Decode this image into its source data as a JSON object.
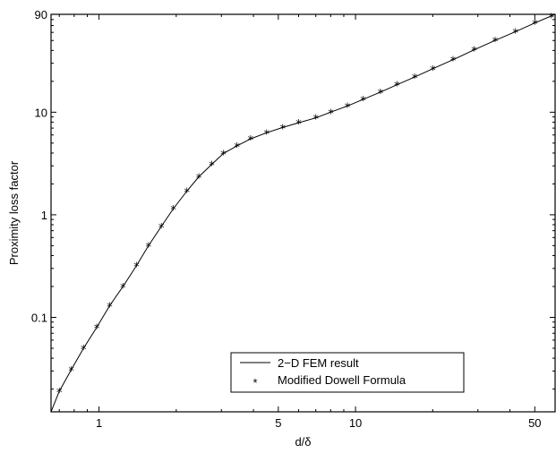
{
  "chart_data": {
    "type": "line",
    "xlabel": "d/δ",
    "ylabel": "Proximity loss factor",
    "xscale": "log",
    "yscale": "log",
    "xlim": [
      0.65,
      60
    ],
    "ylim": [
      0.012,
      90
    ],
    "grid": false,
    "legend_position": "bottom-center",
    "x_ticks": [
      {
        "value": 1,
        "label": "1"
      },
      {
        "value": 5,
        "label": "5"
      },
      {
        "value": 10,
        "label": "10"
      },
      {
        "value": 50,
        "label": "50"
      }
    ],
    "y_ticks": [
      {
        "value": 0.1,
        "label": "0.1"
      },
      {
        "value": 1,
        "label": "1"
      },
      {
        "value": 10,
        "label": "10"
      },
      {
        "value": 90,
        "label": "90"
      }
    ],
    "series": [
      {
        "name": "2−D FEM result",
        "style": "line",
        "color": "#000000",
        "x": [
          0.65,
          0.7,
          0.78,
          0.87,
          0.98,
          1.1,
          1.24,
          1.4,
          1.56,
          1.75,
          1.95,
          2.2,
          2.45,
          2.75,
          3.05,
          3.45,
          3.9,
          4.5,
          5.2,
          6.0,
          7.0,
          8.0,
          9.3,
          10.7,
          12.5,
          14.5,
          17,
          20,
          24,
          29,
          35,
          42,
          50,
          60
        ],
        "y": [
          0.012,
          0.019,
          0.031,
          0.05,
          0.08,
          0.13,
          0.2,
          0.32,
          0.5,
          0.77,
          1.15,
          1.7,
          2.35,
          3.1,
          3.95,
          4.7,
          5.5,
          6.3,
          7.1,
          7.9,
          8.8,
          10,
          11.5,
          13.3,
          15.7,
          18.5,
          22,
          26.5,
          32.5,
          40.5,
          50,
          61,
          74,
          90
        ]
      },
      {
        "name": "Modified Dowell Formula",
        "style": "marker",
        "marker": "*",
        "color": "#000000",
        "x": [
          0.7,
          0.78,
          0.87,
          0.98,
          1.1,
          1.24,
          1.4,
          1.56,
          1.75,
          1.95,
          2.2,
          2.45,
          2.75,
          3.05,
          3.45,
          3.9,
          4.5,
          5.2,
          6.0,
          7.0,
          8.0,
          9.3,
          10.7,
          12.5,
          14.5,
          17,
          20,
          24,
          29,
          35,
          42,
          50,
          58
        ],
        "y": [
          0.019,
          0.031,
          0.05,
          0.08,
          0.13,
          0.2,
          0.32,
          0.5,
          0.77,
          1.15,
          1.7,
          2.35,
          3.1,
          3.95,
          4.7,
          5.5,
          6.3,
          7.1,
          7.9,
          8.8,
          10,
          11.5,
          13.3,
          15.7,
          18.5,
          22,
          26.5,
          32.5,
          40.5,
          50,
          61,
          74,
          86
        ]
      }
    ]
  }
}
